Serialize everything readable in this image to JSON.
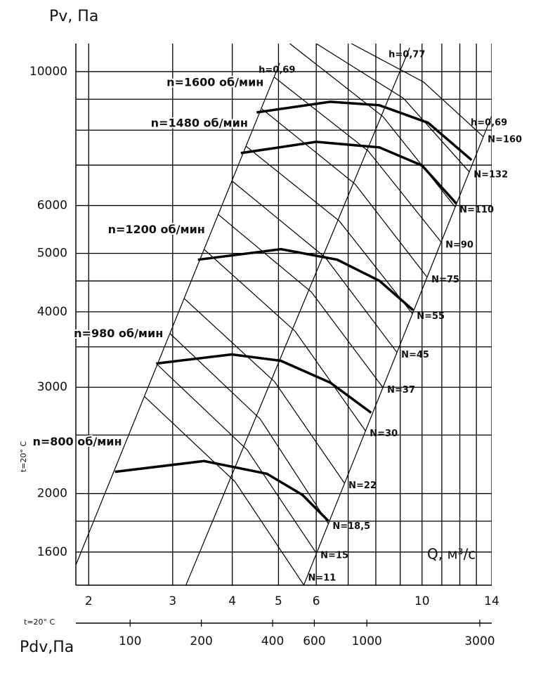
{
  "chart_data": {
    "type": "line",
    "title": "Pv, Па",
    "x_label": "Q, м³/с",
    "y_side_note": "t=20° C",
    "x2_note": "t=20° C",
    "x2_label": "Pdv,Па",
    "xscale": "log",
    "yscale": "log",
    "x2scale": "log",
    "xlim": [
      1.88,
      14
    ],
    "ylim": [
      1410,
      11130
    ],
    "x2lim": [
      59,
      3370
    ],
    "xticks": [
      2,
      3,
      4,
      5,
      6,
      10,
      14
    ],
    "yticks": [
      1600,
      2000,
      3000,
      4000,
      5000,
      6000,
      10000
    ],
    "x2ticks": [
      100,
      200,
      400,
      600,
      1000,
      3000
    ],
    "grid": true,
    "x_minor_grid": [
      7,
      8,
      9,
      11,
      12,
      13
    ],
    "y_minor_grid": [
      1800,
      2500,
      3500,
      4500,
      7000,
      8000,
      9000
    ],
    "color": "#000000",
    "series": [
      {
        "name": "n=800 об/мин",
        "x": [
          2.27,
          3.49,
          4.73,
          5.61,
          6.36
        ],
        "values": [
          2173,
          2264,
          2157,
          1990,
          1802
        ]
      },
      {
        "name": "n=980 об/мин",
        "x": [
          2.77,
          3.99,
          5.06,
          6.42,
          7.82
        ],
        "values": [
          3284,
          3400,
          3318,
          3054,
          2722
        ]
      },
      {
        "name": "n=1200 об/мин",
        "x": [
          3.39,
          5.06,
          6.64,
          8.14,
          9.58
        ],
        "values": [
          4880,
          5080,
          4880,
          4503,
          4025
        ]
      },
      {
        "name": "n=1480 об/мин",
        "x": [
          4.17,
          6.0,
          8.14,
          10.0,
          11.8
        ],
        "values": [
          7330,
          7650,
          7490,
          6990,
          6045
        ]
      },
      {
        "name": "n=1600 об/мин",
        "x": [
          4.5,
          6.42,
          8.14,
          10.3,
          12.7
        ],
        "values": [
          8560,
          8913,
          8796,
          8226,
          7137
        ]
      }
    ],
    "efficiency_lines": [
      {
        "name": "h=0,69",
        "x": [
          1.88,
          5.03
        ],
        "values": [
          1523,
          10330
        ]
      },
      {
        "name": "h=0,77",
        "x": [
          3.2,
          9.42
        ],
        "values": [
          1411,
          10950
        ]
      },
      {
        "name": "h=0,69",
        "x": [
          5.65,
          14
        ],
        "values": [
          1411,
          8450
        ]
      }
    ],
    "power_lines": [
      {
        "name": "N=11",
        "x": [
          2.62,
          4.05,
          5.65
        ],
        "values": [
          2894,
          2094,
          1411
        ]
      },
      {
        "name": "N=15",
        "x": [
          2.79,
          4.3,
          6.0
        ],
        "values": [
          3266,
          2362,
          1594
        ]
      },
      {
        "name": "N=18,5",
        "x": [
          2.96,
          4.58,
          6.36
        ],
        "values": [
          3684,
          2657,
          1783
        ]
      },
      {
        "name": "N=22",
        "x": [
          3.17,
          4.91,
          6.87
        ],
        "values": [
          4211,
          3062,
          2083
        ]
      },
      {
        "name": "N=30",
        "x": [
          3.49,
          5.42,
          7.61
        ],
        "values": [
          5079,
          3714,
          2540
        ]
      },
      {
        "name": "N=37",
        "x": [
          3.73,
          5.86,
          8.28
        ],
        "values": [
          5807,
          4314,
          2997
        ]
      },
      {
        "name": "N=45",
        "x": [
          4.0,
          6.27,
          8.86
        ],
        "values": [
          6585,
          4920,
          3426
        ]
      },
      {
        "name": "N=55",
        "x": [
          4.27,
          6.71,
          9.55
        ],
        "values": [
          7529,
          5654,
          3970
        ]
      },
      {
        "name": "N=75",
        "x": [
          4.61,
          7.23,
          10.25
        ],
        "values": [
          8679,
          6516,
          4564
        ]
      },
      {
        "name": "N=90",
        "x": [
          4.9,
          7.71,
          10.97
        ],
        "values": [
          9788,
          7389,
          5217
        ]
      },
      {
        "name": "N=110",
        "x": [
          5.28,
          8.28,
          11.74
        ],
        "values": [
          11130,
          8426,
          5965
        ]
      },
      {
        "name": "N=132",
        "x": [
          6.0,
          9.14,
          12.57
        ],
        "values": [
          11130,
          9033,
          6819
        ]
      },
      {
        "name": "N=160",
        "x": [
          7.11,
          10.08,
          13.45
        ],
        "values": [
          11130,
          9607,
          7798
        ]
      }
    ]
  }
}
